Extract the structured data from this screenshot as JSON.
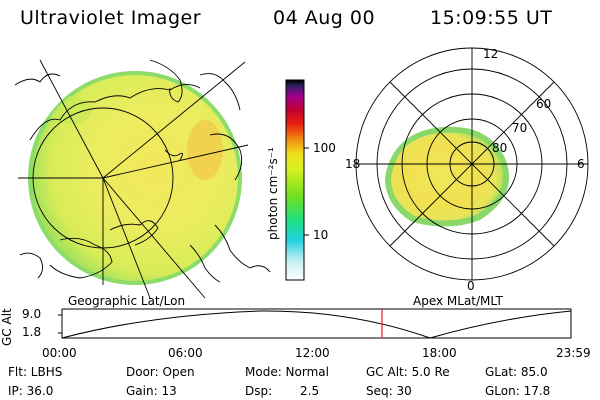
{
  "header": {
    "title": "Ultraviolet Imager",
    "date": "04 Aug 00",
    "time": "15:09:55 UT"
  },
  "colorbar": {
    "unit_label": "photon cm⁻²s⁻¹",
    "tick_labels": [
      "100",
      "10"
    ]
  },
  "polar": {
    "mlt_labels": [
      "12",
      "18",
      "6",
      "0"
    ],
    "lat_labels": [
      "60",
      "70",
      "80"
    ]
  },
  "panel_labels": {
    "left": "Geographic Lat/Lon",
    "right": "Apex MLat/MLT"
  },
  "altitude_plot": {
    "ylabel": "GC Alt",
    "y_ticks": [
      "9.0",
      "1.8"
    ],
    "x_ticks": [
      "00:00",
      "06:00",
      "12:00",
      "18:00",
      "23:59"
    ],
    "marker_color": "#e0201c"
  },
  "info": {
    "flt": "Flt: LBHS",
    "ip": "IP: 36.0",
    "door": "Door: Open",
    "gain": "Gain: 13",
    "mode": "Mode: Normal",
    "dsp_label": "Dsp:",
    "dsp_value": "2.5",
    "gc_alt": "GC Alt: 5.0 Re",
    "seq": "Seq: 30",
    "glat": "GLat: 85.0",
    "glon": "GLon: 17.8"
  }
}
